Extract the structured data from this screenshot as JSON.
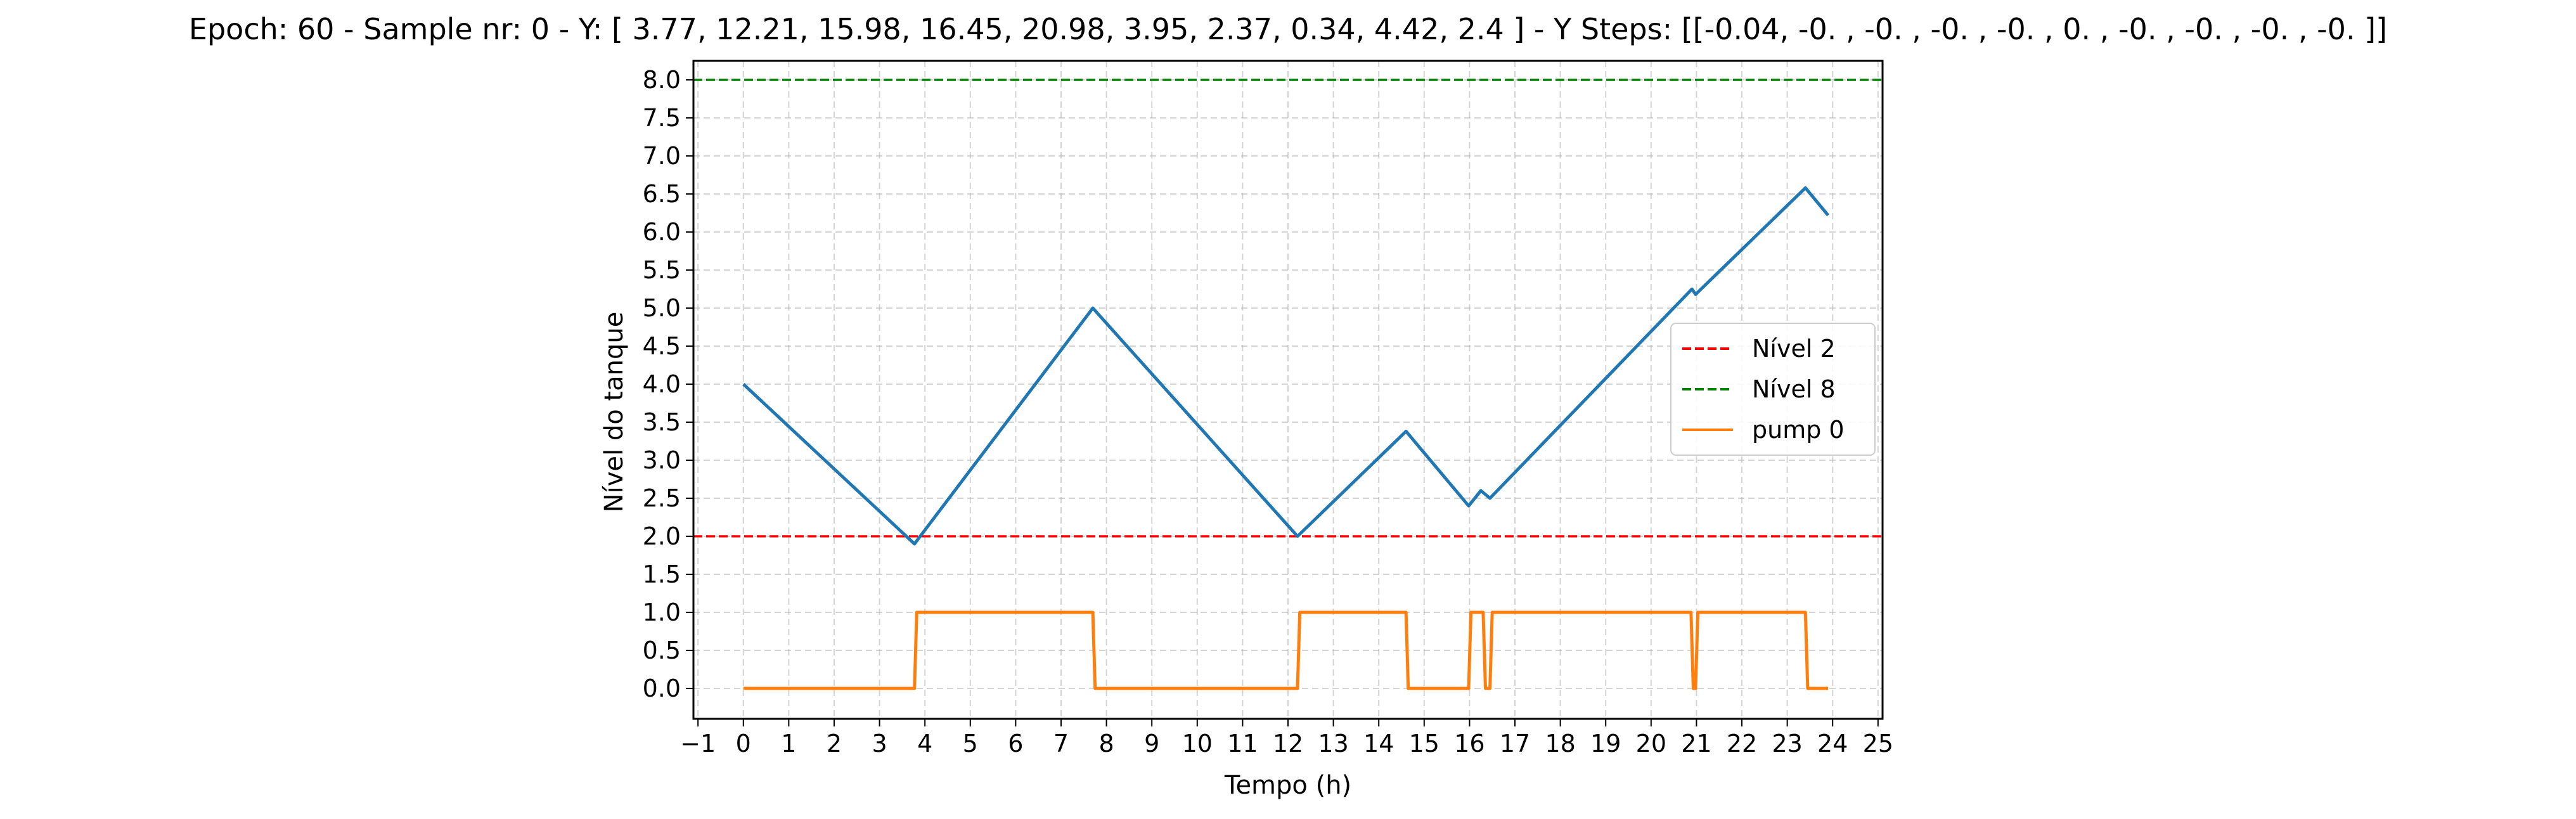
{
  "chart_data": {
    "type": "line",
    "title": "Epoch: 60 - Sample nr: 0 - Y: [ 3.77, 12.21, 15.98, 16.45, 20.98,  3.95,  2.37,  0.34,  4.42,  2.4 ] - Y Steps: [[-0.04, -0.  , -0.  , -0.  , -0.  ,  0.  , -0.  , -0.  , -0.  , -0.  ]]",
    "xlabel": "Tempo (h)",
    "ylabel": "Nível do tanque",
    "xlim": [
      -1.1,
      25.1
    ],
    "ylim": [
      -0.4,
      8.25
    ],
    "xticks": [
      "−1",
      "0",
      "1",
      "2",
      "3",
      "4",
      "5",
      "6",
      "7",
      "8",
      "9",
      "10",
      "11",
      "12",
      "13",
      "14",
      "15",
      "16",
      "17",
      "18",
      "19",
      "20",
      "21",
      "22",
      "23",
      "24",
      "25"
    ],
    "yticks": [
      "0.0",
      "0.5",
      "1.0",
      "1.5",
      "2.0",
      "2.5",
      "3.0",
      "3.5",
      "4.0",
      "4.5",
      "5.0",
      "5.5",
      "6.0",
      "6.5",
      "7.0",
      "7.5",
      "8.0"
    ],
    "grid": true,
    "legend_position": "center-right",
    "legend": [
      "Nível 2",
      "Nível 8",
      "pump 0"
    ],
    "hlines": [
      {
        "name": "Nível 2",
        "y": 2.0,
        "color": "#ff0000",
        "dashed": true
      },
      {
        "name": "Nível 8",
        "y": 8.0,
        "color": "#008000",
        "dashed": true
      }
    ],
    "series": [
      {
        "name": "",
        "color": "#1f77b4",
        "x": [
          0,
          3.77,
          7.7,
          12.21,
          14.6,
          15.98,
          16.25,
          16.45,
          20.9,
          20.98,
          23.4,
          23.9
        ],
        "y": [
          4.0,
          1.9,
          5.0,
          2.0,
          3.38,
          2.4,
          2.6,
          2.5,
          5.25,
          5.18,
          6.58,
          6.22
        ]
      },
      {
        "name": "pump 0",
        "color": "#ff7f0e",
        "x": [
          0,
          3.77,
          3.82,
          7.7,
          7.75,
          12.21,
          12.26,
          14.6,
          14.65,
          15.98,
          16.03,
          16.3,
          16.35,
          16.45,
          16.5,
          20.88,
          20.93,
          20.98,
          21.03,
          23.4,
          23.45,
          23.9
        ],
        "y": [
          0,
          0,
          1,
          1,
          0,
          0,
          1,
          1,
          0,
          0,
          1,
          1,
          0,
          0,
          1,
          1,
          0,
          0,
          1,
          1,
          0,
          0
        ]
      }
    ]
  }
}
